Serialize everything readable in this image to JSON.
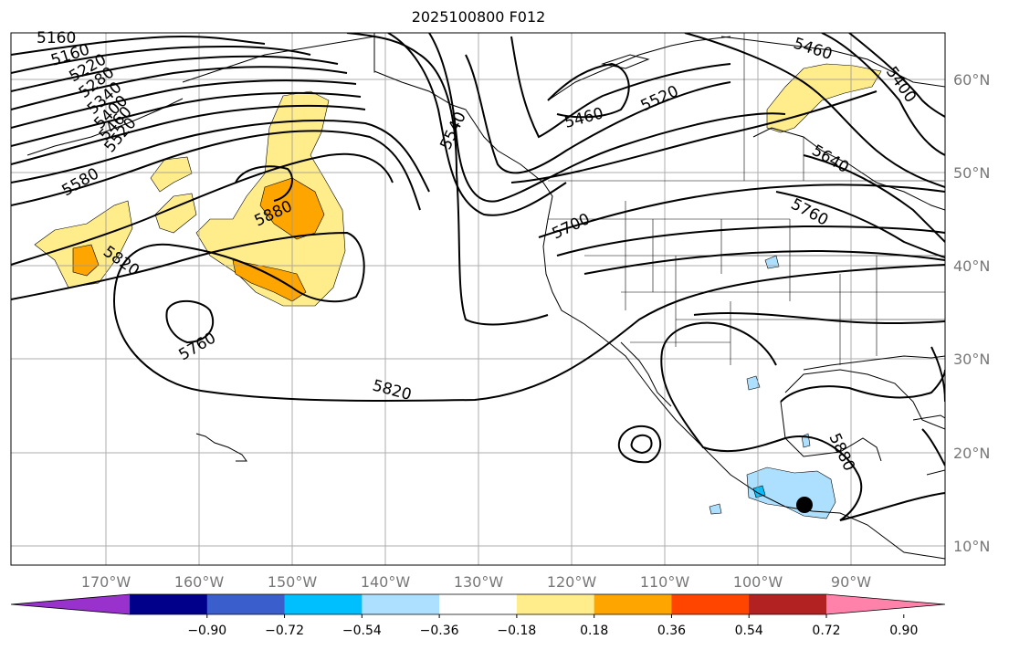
{
  "title": "2025100800 F012",
  "map": {
    "lon_ticks": [
      "170°W",
      "160°W",
      "150°W",
      "140°W",
      "130°W",
      "120°W",
      "110°W",
      "100°W",
      "90°W"
    ],
    "lat_ticks": [
      "60°N",
      "50°N",
      "40°N",
      "30°N",
      "20°N",
      "10°N"
    ],
    "contour_labels": [
      "5160",
      "5160",
      "5220",
      "5280",
      "5340",
      "5400",
      "5460",
      "5520",
      "5580",
      "5820",
      "5880",
      "5760",
      "5820",
      "5540",
      "5460",
      "5520",
      "5700",
      "5760",
      "5640",
      "5460",
      "5400",
      "5880"
    ],
    "storm_marker": "black-dot"
  },
  "colorbar": {
    "colors": [
      "#9932CC",
      "#00008B",
      "#3A5FCD",
      "#00BFFF",
      "#ADDFFF",
      "#FFFFFF",
      "#FFEC8B",
      "#FFA500",
      "#FF4500",
      "#B22222",
      "#FF82AB"
    ],
    "labels": [
      "−0.90",
      "−0.72",
      "−0.54",
      "−0.36",
      "−0.18",
      "0.18",
      "0.36",
      "0.54",
      "0.72",
      "0.90"
    ]
  }
}
